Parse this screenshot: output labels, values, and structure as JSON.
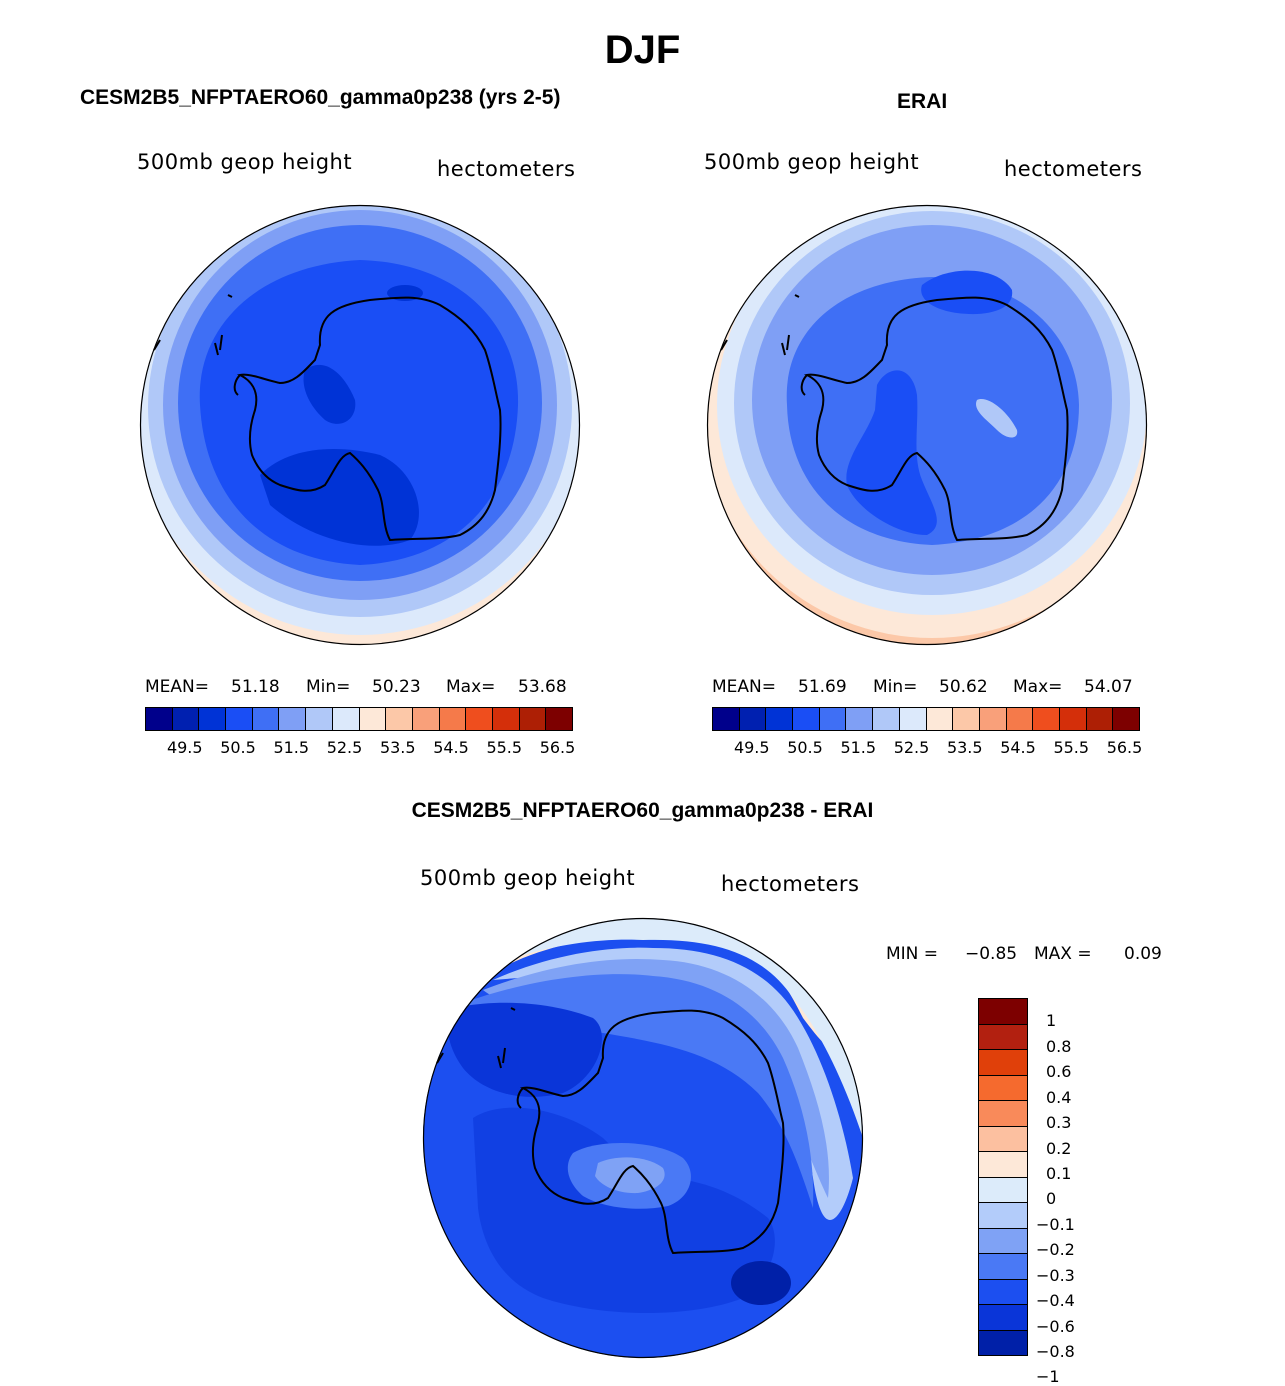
{
  "figure": {
    "season": "DJF"
  },
  "panels": {
    "model": {
      "title": "CESM2B5_NFPTAERO60_gamma0p238 (yrs 2-5)",
      "variable": "500mb geop height",
      "units": "hectometers",
      "mean_label": "MEAN=",
      "mean": "51.18",
      "min_label": "Min=",
      "min": "50.23",
      "max_label": "Max=",
      "max": "53.68"
    },
    "obs": {
      "title": "ERAI",
      "variable": "500mb geop height",
      "units": "hectometers",
      "mean_label": "MEAN=",
      "mean": "51.69",
      "min_label": "Min=",
      "min": "50.62",
      "max_label": "Max=",
      "max": "54.07"
    },
    "diff": {
      "title": "CESM2B5_NFPTAERO60_gamma0p238 - ERAI",
      "variable": "500mb geop height",
      "units": "hectometers",
      "min_label": "MIN =",
      "min": "−0.85",
      "max_label": "MAX =",
      "max": "0.09"
    }
  },
  "colorbar_abs": {
    "colors": [
      "#00008b",
      "#0020b0",
      "#0033d6",
      "#1a4ef5",
      "#3f6ff5",
      "#7f9ff5",
      "#b0c8f8",
      "#dce9fb",
      "#fde8d8",
      "#fcc8a8",
      "#f9a07a",
      "#f57a4a",
      "#ef4e1e",
      "#d42f0a",
      "#ad1f05",
      "#7d0000"
    ],
    "ticks": [
      "49.5",
      "50.5",
      "51.5",
      "52.5",
      "53.5",
      "54.5",
      "55.5",
      "56.5"
    ]
  },
  "colorbar_diff": {
    "colors": [
      "#7d0000",
      "#b22010",
      "#e0400a",
      "#f56a2e",
      "#f98a5a",
      "#fcc0a0",
      "#fde8d8",
      "#dcebfa",
      "#b3ccfa",
      "#7fa2f5",
      "#4a79f5",
      "#1c4ff0",
      "#0a35d8",
      "#0020a8"
    ],
    "ticks": [
      "1",
      "0.8",
      "0.6",
      "0.4",
      "0.3",
      "0.2",
      "0.1",
      "0",
      "−0.1",
      "−0.2",
      "−0.3",
      "−0.4",
      "−0.6",
      "−0.8",
      "−1"
    ]
  }
}
